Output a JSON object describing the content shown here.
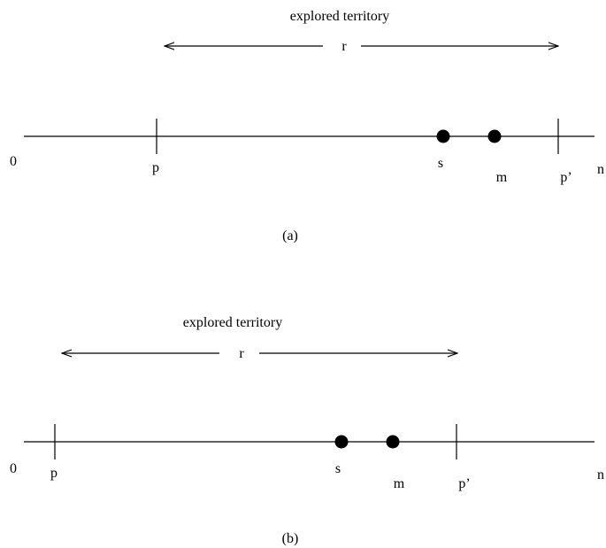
{
  "panel_a": {
    "heading": "explored territory",
    "span_label": "r",
    "start_label": "0",
    "end_label": "n",
    "p_label": "p",
    "p_prime_label": "p’",
    "s_label": "s",
    "m_label": "m",
    "caption": "(a)"
  },
  "panel_b": {
    "heading": "explored territory",
    "span_label": "r",
    "start_label": "0",
    "end_label": "n",
    "p_label": "p",
    "p_prime_label": "p’",
    "s_label": "s",
    "m_label": "m",
    "caption": "(b)"
  }
}
